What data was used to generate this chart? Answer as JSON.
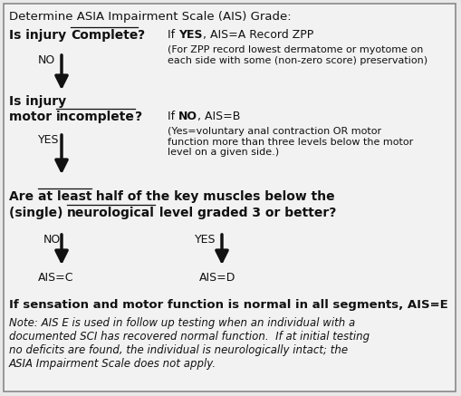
{
  "bg_color": "#e8e8e8",
  "inner_bg": "#f2f2f2",
  "border_color": "#888888",
  "text_color": "#111111",
  "arrow_color": "#111111",
  "figsize": [
    5.09,
    4.37
  ],
  "dpi": 100,
  "title": "Determine ASIA Impairment Scale (AIS) Grade:",
  "q1_yes_note": "(For ZPP record lowest dermatome or myotome on\neach side with some (non-zero score) preservation)",
  "q2_no_note": "(Yes=voluntary anal contraction OR motor\nfunction more than three levels below the motor\nlevel on a given side.)",
  "ais_e_bold": "If sensation and motor function is normal in all segments, AIS=E",
  "note_italic": "Note: AIS E is used in follow up testing when an individual with a\ndocumented SCI has recovered normal function.  If at initial testing\nno deficits are found, the individual is neurologically intact; the\nASIA Impairment Scale does not apply."
}
